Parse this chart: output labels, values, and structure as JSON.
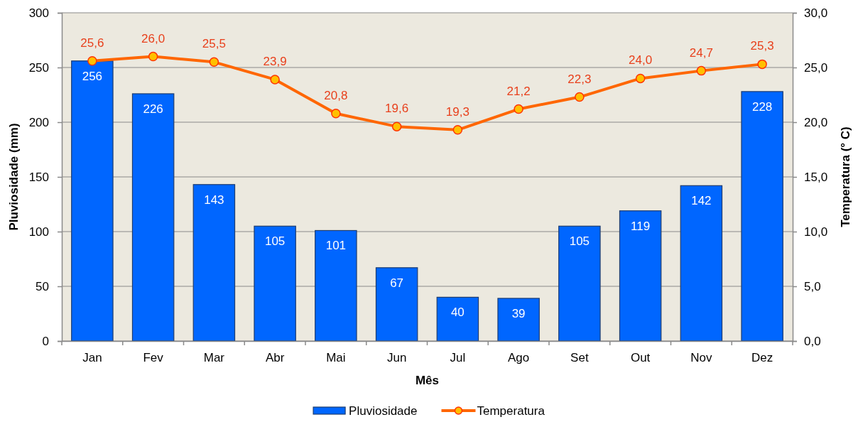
{
  "chart_data": {
    "type": "bar",
    "categories": [
      "Jan",
      "Fev",
      "Mar",
      "Abr",
      "Mai",
      "Jun",
      "Jul",
      "Ago",
      "Set",
      "Out",
      "Nov",
      "Dez"
    ],
    "series": [
      {
        "name": "Pluviosidade",
        "color": "#0066ff",
        "values": [
          256,
          226,
          143,
          105,
          101,
          67,
          40,
          39,
          105,
          119,
          142,
          228
        ],
        "value_labels": [
          "256",
          "226",
          "143",
          "105",
          "101",
          "67",
          "40",
          "39",
          "105",
          "119",
          "142",
          "228"
        ]
      },
      {
        "name": "Temperatura",
        "type": "line",
        "axis": "y2",
        "color": "#ff6600",
        "marker": "circle",
        "values": [
          25.6,
          26.0,
          25.5,
          23.9,
          20.8,
          19.6,
          19.3,
          21.2,
          22.3,
          24.0,
          24.7,
          25.3
        ],
        "value_labels": [
          "25,6",
          "26,0",
          "25,5",
          "23,9",
          "20,8",
          "19,6",
          "19,3",
          "21,2",
          "22,3",
          "24,0",
          "24,7",
          "25,3"
        ]
      }
    ],
    "xlabel": "Mês",
    "ylabel": "Pluviosidade (mm)",
    "y2label": "Temperatura (° C)",
    "ylim": [
      0,
      300
    ],
    "yticks": [
      0,
      50,
      100,
      150,
      200,
      250,
      300
    ],
    "y2lim": [
      0,
      30
    ],
    "y2ticks": [
      {
        "value": 0,
        "label": "0,0"
      },
      {
        "value": 5,
        "label": "5,0"
      },
      {
        "value": 10,
        "label": "10,0"
      },
      {
        "value": 15,
        "label": "15,0"
      },
      {
        "value": 20,
        "label": "20,0"
      },
      {
        "value": 25,
        "label": "25,0"
      },
      {
        "value": 30,
        "label": "30,0"
      }
    ],
    "grid": "y",
    "legend": "bottom"
  }
}
